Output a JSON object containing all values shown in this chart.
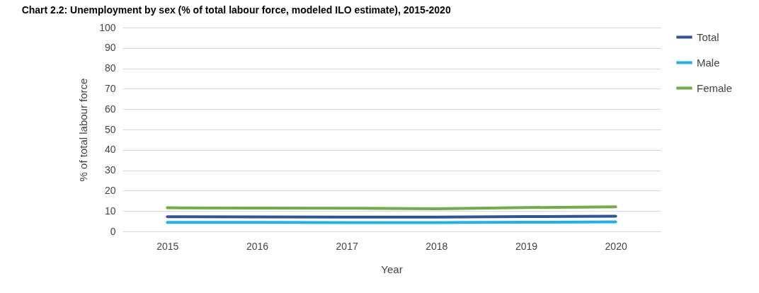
{
  "chart_data": {
    "type": "line",
    "title": "Chart 2.2: Unemployment by sex (% of total labour force, modeled ILO estimate), 2015-2020",
    "xlabel": "Year",
    "ylabel": "% of total labour force",
    "categories": [
      "2015",
      "2016",
      "2017",
      "2018",
      "2019",
      "2020"
    ],
    "series": [
      {
        "name": "Total",
        "color": "#2f5597",
        "values": [
          7.2,
          7.1,
          7.0,
          7.0,
          7.3,
          7.5
        ]
      },
      {
        "name": "Male",
        "color": "#1fb0e6",
        "values": [
          4.4,
          4.4,
          4.3,
          4.3,
          4.5,
          4.7
        ]
      },
      {
        "name": "Female",
        "color": "#70ad47",
        "values": [
          11.6,
          11.5,
          11.4,
          11.1,
          11.7,
          12.1
        ]
      }
    ],
    "ylim": [
      0,
      100
    ],
    "yticks": [
      0,
      10,
      20,
      30,
      40,
      50,
      60,
      70,
      80,
      90,
      100
    ],
    "grid": "y",
    "legend": "right",
    "marker": "none",
    "line_style": "solid"
  }
}
